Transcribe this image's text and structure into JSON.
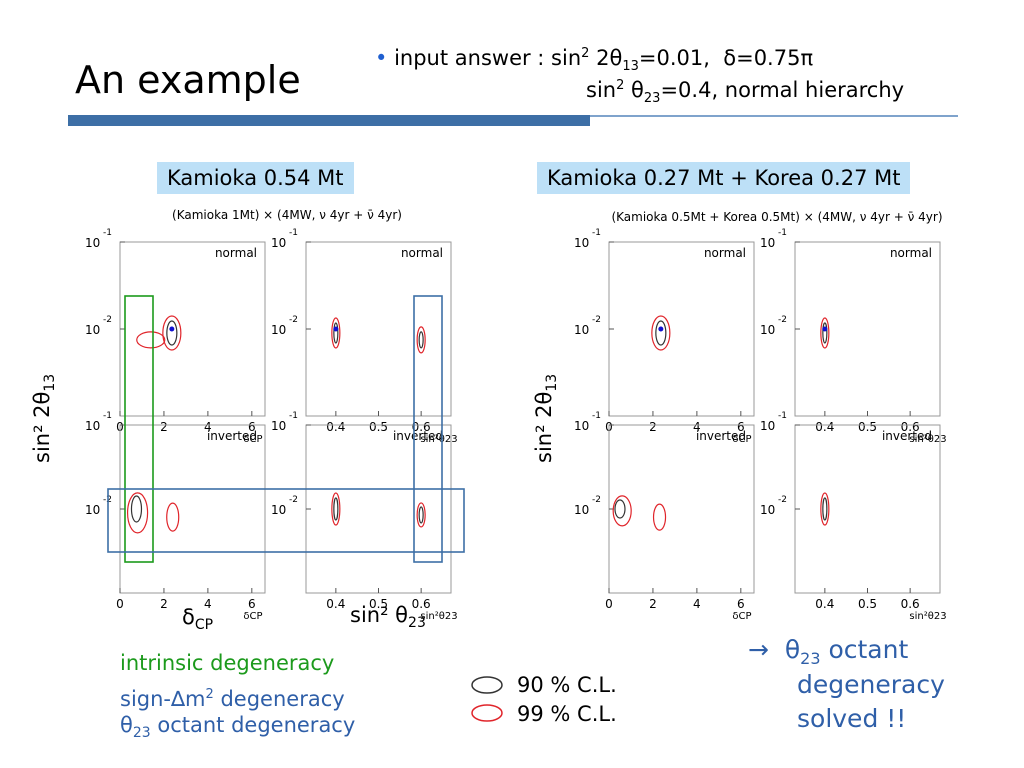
{
  "slide": {
    "title": "An example",
    "input_prefix": "input answer : sin",
    "input_line1_rest": "=0.01,",
    "delta_value": "=0.75",
    "input_line2_rest": "=0.4,  normal hierarchy",
    "bullet_color": "#1f5fd0",
    "accent_blue": "#3d6fa6"
  },
  "left": {
    "label": "Kamioka 0.54 Mt",
    "subtitle": "(Kamioka 1Mt) × (4MW, ν 4yr + ν̄ 4yr)",
    "ylabel": "sin² 2θ",
    "ylabel_sub": "13",
    "xlabel_delta": "δ",
    "xlabel_delta_sub": "CP",
    "xlabel_theta": "sin² θ",
    "xlabel_theta_sub": "23"
  },
  "right": {
    "label": "Kamioka 0.27 Mt + Korea 0.27 Mt",
    "subtitle": "(Kamioka 0.5Mt + Korea 0.5Mt) × (4MW, ν 4yr + ν̄ 4yr)",
    "ylabel": "sin² 2θ",
    "ylabel_sub": "13"
  },
  "notes": {
    "intrinsic": "intrinsic degeneracy",
    "sign_prefix": "sign-",
    "sign_rest": " degeneracy",
    "octant": " octant degeneracy",
    "theta": "θ",
    "theta_sub": "23",
    "delta_m": "∆m",
    "cl90": "90 % C.L.",
    "cl99": "99 % C.L.",
    "arrow": "→",
    "solved_1": " octant",
    "solved_2": "degeneracy",
    "solved_3": "solved !!"
  },
  "chart_data": [
    {
      "type": "scatter",
      "description_panel": "left-top-dcp",
      "title": "normal",
      "xlabel": "δCP",
      "ylabel": "sin² 2θ13",
      "xlim": [
        0,
        6.6
      ],
      "ylog": true,
      "ylim": [
        0.001,
        0.1
      ],
      "x_ticks": [
        "0",
        "2",
        "4",
        "6"
      ],
      "y_ticks": [
        "10^-2",
        "10^-1"
      ],
      "true_point": {
        "x": 2.36,
        "y": 0.01
      }
    },
    {
      "type": "scatter",
      "description_panel": "left-top-s23",
      "title": "normal",
      "xlabel": "sin²θ23",
      "xlim": [
        0.33,
        0.67
      ],
      "ylog": true,
      "ylim": [
        0.001,
        0.1
      ],
      "x_ticks": [
        "0.4",
        "0.5",
        "0.6"
      ],
      "y_ticks": [
        "10^-2",
        "10^-1"
      ],
      "true_point": {
        "x": 0.4,
        "y": 0.01
      }
    },
    {
      "type": "scatter",
      "description_panel": "left-bottom-dcp",
      "title": "inverted",
      "xlabel": "δCP",
      "xlim": [
        0,
        6.6
      ],
      "ylog": true,
      "ylim": [
        0.001,
        0.1
      ],
      "x_ticks": [
        "0",
        "2",
        "4",
        "6"
      ],
      "y_ticks": [
        "10^-2",
        "10^-1"
      ]
    },
    {
      "type": "scatter",
      "description_panel": "left-bottom-s23",
      "title": "inverted",
      "xlabel": "sin²θ23",
      "xlim": [
        0.33,
        0.67
      ],
      "ylog": true,
      "ylim": [
        0.001,
        0.1
      ],
      "x_ticks": [
        "0.4",
        "0.5",
        "0.6"
      ],
      "y_ticks": [
        "10^-2",
        "10^-1"
      ]
    },
    {
      "type": "scatter",
      "description_panel": "right-top-dcp",
      "title": "normal",
      "xlabel": "δCP",
      "xlim": [
        0,
        6.6
      ],
      "ylog": true,
      "ylim": [
        0.001,
        0.1
      ],
      "x_ticks": [
        "0",
        "2",
        "4",
        "6"
      ],
      "y_ticks": [
        "10^-2",
        "10^-1"
      ],
      "true_point": {
        "x": 2.36,
        "y": 0.01
      }
    },
    {
      "type": "scatter",
      "description_panel": "right-top-s23",
      "title": "normal",
      "xlabel": "sin²θ23",
      "xlim": [
        0.33,
        0.67
      ],
      "ylog": true,
      "ylim": [
        0.001,
        0.1
      ],
      "x_ticks": [
        "0.4",
        "0.5",
        "0.6"
      ],
      "y_ticks": [
        "10^-2",
        "10^-1"
      ],
      "true_point": {
        "x": 0.4,
        "y": 0.01
      }
    },
    {
      "type": "scatter",
      "description_panel": "right-bottom-dcp",
      "title": "inverted",
      "xlabel": "δCP",
      "xlim": [
        0,
        6.6
      ],
      "ylog": true,
      "ylim": [
        0.001,
        0.1
      ],
      "x_ticks": [
        "0",
        "2",
        "4",
        "6"
      ],
      "y_ticks": [
        "10^-2",
        "10^-1"
      ]
    },
    {
      "type": "scatter",
      "description_panel": "right-bottom-s23",
      "title": "inverted",
      "xlabel": "sin²θ23",
      "xlim": [
        0.33,
        0.67
      ],
      "ylog": true,
      "ylim": [
        0.001,
        0.1
      ],
      "x_ticks": [
        "0.4",
        "0.5",
        "0.6"
      ],
      "y_ticks": [
        "10^-2",
        "10^-1"
      ]
    }
  ],
  "colors": {
    "cl90": "#333333",
    "cl99": "#e0242a",
    "true_point": "#1010d0",
    "green_box": "#1c9a1c",
    "blue_box": "#3d6fa6"
  }
}
